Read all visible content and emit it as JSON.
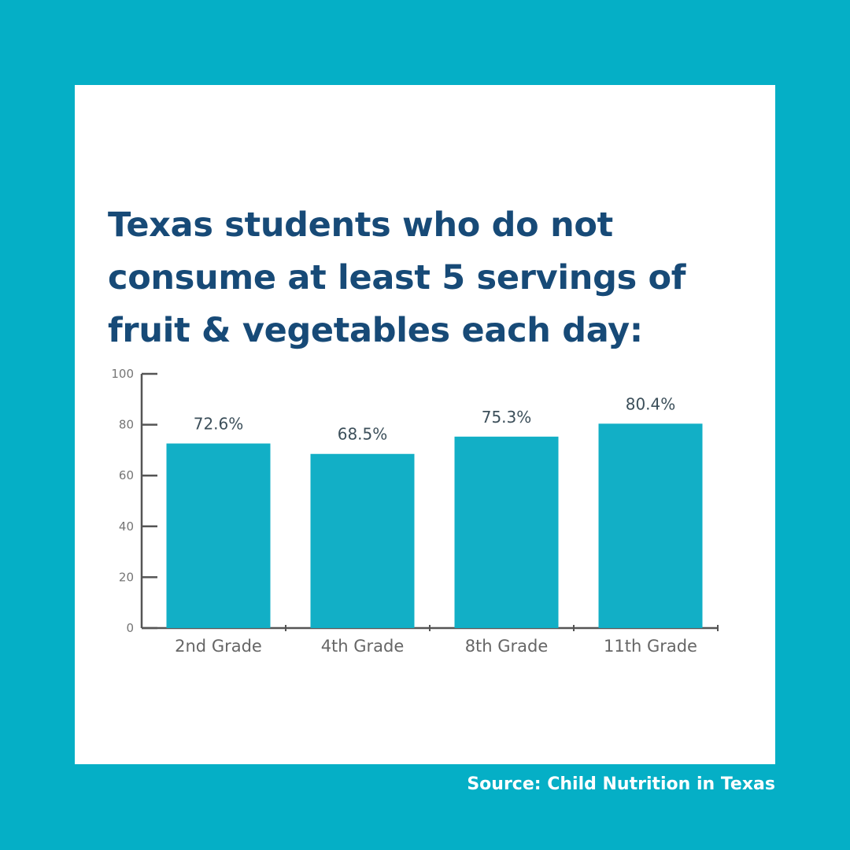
{
  "colors": {
    "background": "#05AFC6",
    "card": "#FFFFFF",
    "title": "#174A77",
    "bar": "#12AFC6",
    "axis": "#555555"
  },
  "source_text": "Source: Child Nutrition in Texas",
  "chart_data": {
    "type": "bar",
    "title": "Texas students who do not consume at least 5 servings of fruit & vegetables each day:",
    "xlabel": "",
    "ylabel": "",
    "categories": [
      "2nd Grade",
      "4th Grade",
      "8th Grade",
      "11th Grade"
    ],
    "values": [
      72.6,
      68.5,
      75.3,
      80.4
    ],
    "value_labels": [
      "72.6%",
      "68.5%",
      "75.3%",
      "80.4%"
    ],
    "ylim": [
      0,
      100
    ],
    "yticks": [
      0,
      20,
      40,
      60,
      80,
      100
    ],
    "grid": false,
    "legend": "none"
  }
}
